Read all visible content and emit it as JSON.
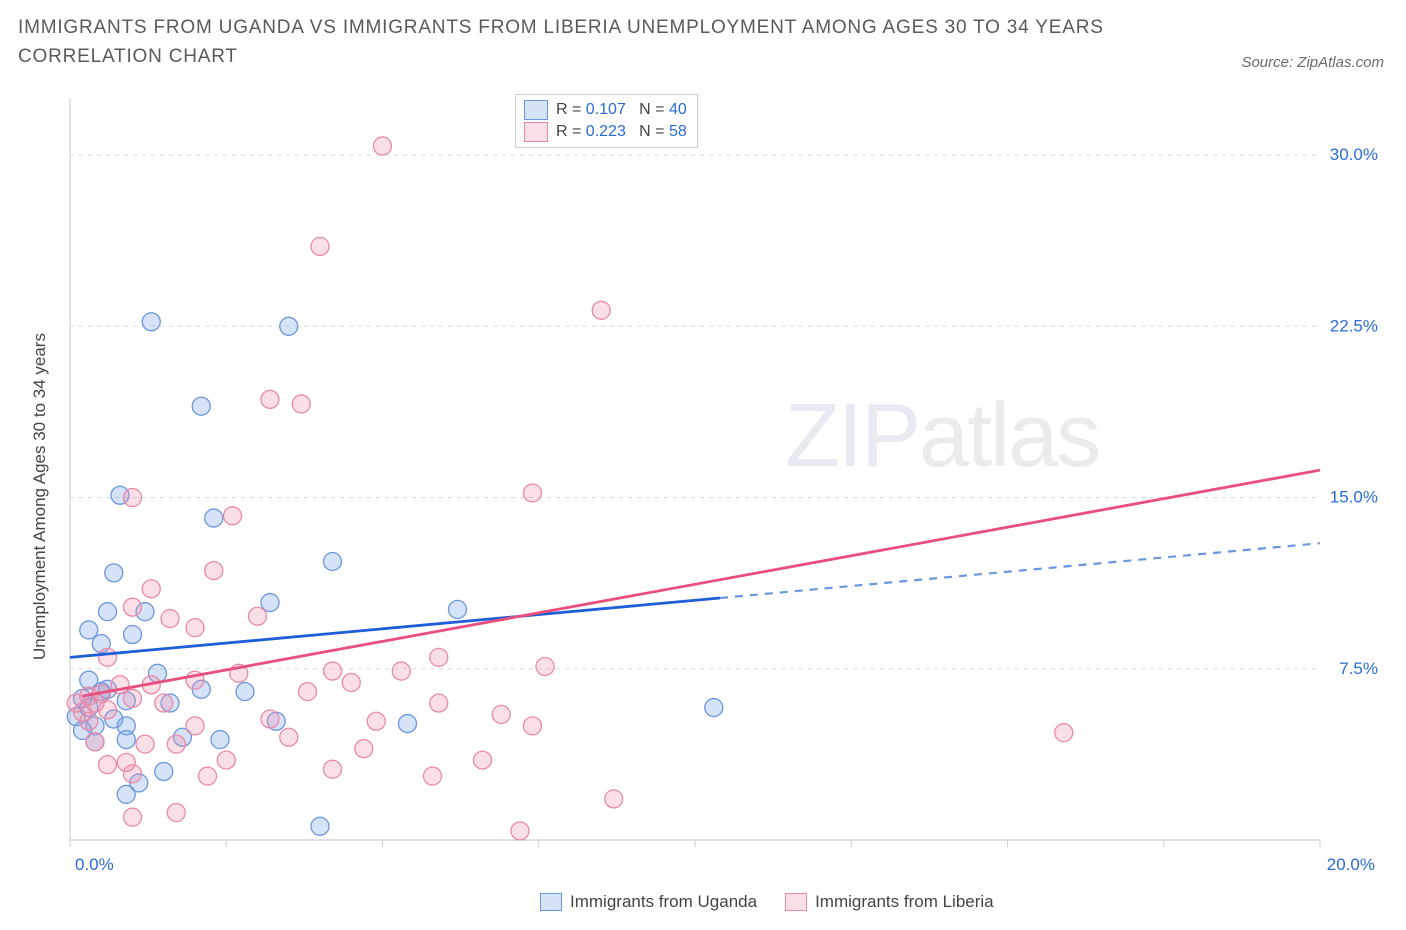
{
  "title": "IMMIGRANTS FROM UGANDA VS IMMIGRANTS FROM LIBERIA UNEMPLOYMENT AMONG AGES 30 TO 34 YEARS CORRELATION CHART",
  "source": "Source: ZipAtlas.com",
  "watermark": {
    "zip": "ZIP",
    "atlas": "atlas"
  },
  "ylabel": "Unemployment Among Ages 30 to 34 years",
  "chart": {
    "type": "scatter",
    "background_color": "#ffffff",
    "grid_color": "#d8d8d8",
    "axis_color": "#cfcfcf",
    "tick_color": "#cfcfcf",
    "label_color_x": "#2b6cd4",
    "label_color_y": "#2b6cd4",
    "xlim": [
      0,
      20
    ],
    "ylim": [
      0,
      32.5
    ],
    "xtick_step": 2.5,
    "ytick_step": 7.5,
    "x_tick_labels": [
      "0.0%",
      "20.0%"
    ],
    "y_tick_labels": [
      "7.5%",
      "15.0%",
      "22.5%",
      "30.0%"
    ],
    "marker_radius": 9,
    "marker_stroke_width": 1.3,
    "series": [
      {
        "name": "Immigrants from Uganda",
        "fill": "rgba(120,160,230,0.30)",
        "stroke": "#6a97dd",
        "trend_color": "#1d5fd6",
        "trend_dashed_color": "#6a97dd",
        "trend_width": 2.8,
        "R": "0.107",
        "N": "40",
        "trend": {
          "x1_pct": 0,
          "y1": 8.0,
          "x2_pct": 10.4,
          "y2": 10.6,
          "x3_pct": 20,
          "y3": 13.0
        },
        "points": [
          [
            1.3,
            22.7
          ],
          [
            3.5,
            22.5
          ],
          [
            0.8,
            15.1
          ],
          [
            2.3,
            14.1
          ],
          [
            2.1,
            19.0
          ],
          [
            4.2,
            12.2
          ],
          [
            3.2,
            10.4
          ],
          [
            0.2,
            6.2
          ],
          [
            0.1,
            5.4
          ],
          [
            0.3,
            5.8
          ],
          [
            0.6,
            6.6
          ],
          [
            1.0,
            9.0
          ],
          [
            0.7,
            11.7
          ],
          [
            1.2,
            10.0
          ],
          [
            0.5,
            8.6
          ],
          [
            0.4,
            5.0
          ],
          [
            0.9,
            4.4
          ],
          [
            1.8,
            4.5
          ],
          [
            2.4,
            4.4
          ],
          [
            4.0,
            0.6
          ],
          [
            3.3,
            5.2
          ],
          [
            5.4,
            5.1
          ],
          [
            2.1,
            6.6
          ],
          [
            6.2,
            10.1
          ],
          [
            1.6,
            6.0
          ],
          [
            0.3,
            9.2
          ],
          [
            0.5,
            6.5
          ],
          [
            0.9,
            2.0
          ],
          [
            0.9,
            6.1
          ],
          [
            1.5,
            3.0
          ],
          [
            0.2,
            4.8
          ],
          [
            0.4,
            4.3
          ],
          [
            0.7,
            5.3
          ],
          [
            0.9,
            5.0
          ],
          [
            1.4,
            7.3
          ],
          [
            2.8,
            6.5
          ],
          [
            10.3,
            5.8
          ],
          [
            1.1,
            2.5
          ],
          [
            0.6,
            10.0
          ],
          [
            0.3,
            7.0
          ]
        ]
      },
      {
        "name": "Immigrants from Liberia",
        "fill": "rgba(240,140,170,0.28)",
        "stroke": "#e88aa8",
        "trend_color": "#e94f7d",
        "trend_width": 2.8,
        "R": "0.223",
        "N": "58",
        "trend": {
          "x1_pct": 0.2,
          "y1": 6.3,
          "x2_pct": 20,
          "y2": 16.2
        },
        "points": [
          [
            5.0,
            30.4
          ],
          [
            4.0,
            26.0
          ],
          [
            8.5,
            23.2
          ],
          [
            3.2,
            19.3
          ],
          [
            3.7,
            19.1
          ],
          [
            1.0,
            15.0
          ],
          [
            2.6,
            14.2
          ],
          [
            2.3,
            11.8
          ],
          [
            7.4,
            15.2
          ],
          [
            1.6,
            9.7
          ],
          [
            2.0,
            9.3
          ],
          [
            3.0,
            9.8
          ],
          [
            1.0,
            10.2
          ],
          [
            1.3,
            11.0
          ],
          [
            0.6,
            8.0
          ],
          [
            0.3,
            6.3
          ],
          [
            0.1,
            6.0
          ],
          [
            0.2,
            5.6
          ],
          [
            0.5,
            6.4
          ],
          [
            0.8,
            6.8
          ],
          [
            1.3,
            6.8
          ],
          [
            1.5,
            6.0
          ],
          [
            1.0,
            6.2
          ],
          [
            2.0,
            7.0
          ],
          [
            2.7,
            7.3
          ],
          [
            4.5,
            6.9
          ],
          [
            5.3,
            7.4
          ],
          [
            4.2,
            7.4
          ],
          [
            7.6,
            7.6
          ],
          [
            5.9,
            8.0
          ],
          [
            5.9,
            6.0
          ],
          [
            3.5,
            4.5
          ],
          [
            4.2,
            3.1
          ],
          [
            4.7,
            4.0
          ],
          [
            5.8,
            2.8
          ],
          [
            7.2,
            0.4
          ],
          [
            1.0,
            2.9
          ],
          [
            1.7,
            1.2
          ],
          [
            2.2,
            2.8
          ],
          [
            2.5,
            3.5
          ],
          [
            0.4,
            4.3
          ],
          [
            0.6,
            3.3
          ],
          [
            0.9,
            3.4
          ],
          [
            1.2,
            4.2
          ],
          [
            1.7,
            4.2
          ],
          [
            6.6,
            3.5
          ],
          [
            6.9,
            5.5
          ],
          [
            7.4,
            5.0
          ],
          [
            8.7,
            1.8
          ],
          [
            15.9,
            4.7
          ],
          [
            3.2,
            5.3
          ],
          [
            1.0,
            1.0
          ],
          [
            0.6,
            5.7
          ],
          [
            0.3,
            5.2
          ],
          [
            2.0,
            5.0
          ],
          [
            3.8,
            6.5
          ],
          [
            4.9,
            5.2
          ],
          [
            0.4,
            6.0
          ]
        ]
      }
    ]
  },
  "legend_top": {
    "R_label": "R =",
    "N_label": "N =",
    "value_color": "#2b6cd4",
    "text_color": "#444444"
  }
}
